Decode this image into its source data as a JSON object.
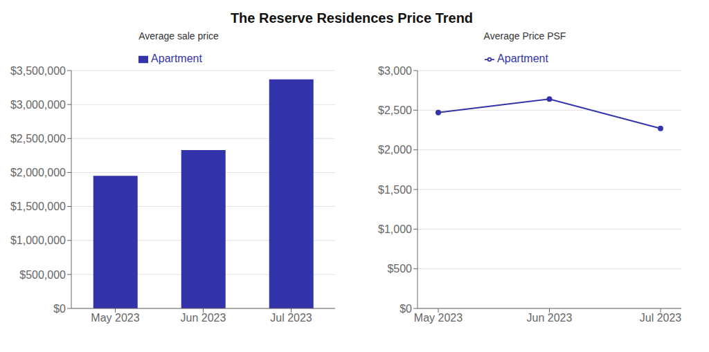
{
  "title": "The Reserve Residences Price Trend",
  "chart_data": [
    {
      "type": "bar",
      "subtitle": "Average sale price",
      "categories": [
        "May 2023",
        "Jun 2023",
        "Jul 2023"
      ],
      "series": [
        {
          "name": "Apartment",
          "color": "#3333aa",
          "values": [
            1950000,
            2330000,
            3370000
          ]
        }
      ],
      "ylim": [
        0,
        3500000
      ],
      "yticks": [
        {
          "value": 0,
          "label": "$0"
        },
        {
          "value": 500000,
          "label": "$500,000"
        },
        {
          "value": 1000000,
          "label": "$1,000,000"
        },
        {
          "value": 1500000,
          "label": "$1,500,000"
        },
        {
          "value": 2000000,
          "label": "$2,000,000"
        },
        {
          "value": 2500000,
          "label": "$2,500,000"
        },
        {
          "value": 3000000,
          "label": "$3,000,000"
        },
        {
          "value": 3500000,
          "label": "$3,500,000"
        }
      ],
      "grid": true,
      "legend": "top"
    },
    {
      "type": "line",
      "subtitle": "Average Price PSF",
      "categories": [
        "May 2023",
        "Jun 2023",
        "Jul 2023"
      ],
      "series": [
        {
          "name": "Apartment",
          "color": "#3333aa",
          "values": [
            2470,
            2640,
            2270
          ],
          "marker": "circle"
        }
      ],
      "ylim": [
        0,
        3000
      ],
      "yticks": [
        {
          "value": 0,
          "label": "$0"
        },
        {
          "value": 500,
          "label": "$500"
        },
        {
          "value": 1000,
          "label": "$1,000"
        },
        {
          "value": 1500,
          "label": "$1,500"
        },
        {
          "value": 2000,
          "label": "$2,000"
        },
        {
          "value": 2500,
          "label": "$2,500"
        },
        {
          "value": 3000,
          "label": "$3,000"
        }
      ],
      "grid": true,
      "legend": "top"
    }
  ]
}
